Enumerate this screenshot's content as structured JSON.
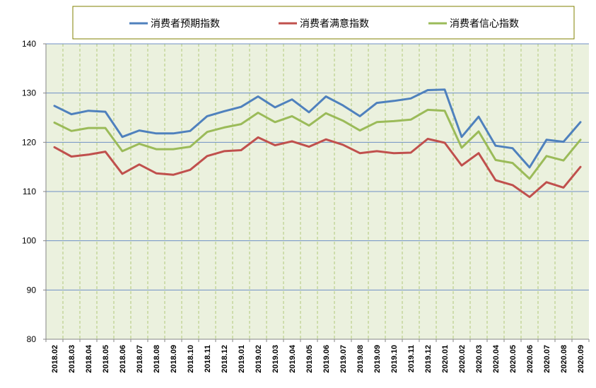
{
  "chart_data": {
    "type": "line",
    "categories": [
      "2018.02",
      "2018.03",
      "2018.04",
      "2018.05",
      "2018.06",
      "2018.07",
      "2018.08",
      "2018.09",
      "2018.10",
      "2018.11",
      "2018.12",
      "2019.01",
      "2019.02",
      "2019.03",
      "2019.04",
      "2019.05",
      "2019.06",
      "2019.07",
      "2019.08",
      "2019.09",
      "2019.10",
      "2019.11",
      "2019.12",
      "2020.01",
      "2020.02",
      "2020.03",
      "2020.04",
      "2020.05",
      "2020.06",
      "2020.07",
      "2020.08",
      "2020.09"
    ],
    "series": [
      {
        "name": "消费者预期指数",
        "color": "#4f81bd",
        "values": [
          127.4,
          125.7,
          126.4,
          126.2,
          121.1,
          122.4,
          121.8,
          121.8,
          122.3,
          125.3,
          126.3,
          127.2,
          129.3,
          127.1,
          128.7,
          126.1,
          129.3,
          127.5,
          125.3,
          128.0,
          128.4,
          128.9,
          130.6,
          130.7,
          121.1,
          125.2,
          119.3,
          118.8,
          114.9,
          120.5,
          120.1,
          124.1
        ]
      },
      {
        "name": "消费者满意指数",
        "color": "#c0504d",
        "values": [
          119.0,
          117.1,
          117.5,
          118.1,
          113.6,
          115.5,
          113.7,
          113.4,
          114.4,
          117.2,
          118.2,
          118.4,
          121.0,
          119.4,
          120.2,
          119.1,
          120.6,
          119.5,
          117.8,
          118.2,
          117.8,
          117.9,
          120.7,
          119.9,
          115.3,
          117.8,
          112.3,
          111.3,
          108.9,
          111.9,
          110.8,
          115.0
        ]
      },
      {
        "name": "消费者信心指数",
        "color": "#9bbb59",
        "values": [
          124.0,
          122.3,
          122.9,
          122.9,
          118.2,
          119.7,
          118.6,
          118.6,
          119.1,
          122.1,
          123.0,
          123.7,
          126.0,
          124.1,
          125.3,
          123.4,
          125.9,
          124.4,
          122.4,
          124.1,
          124.3,
          124.6,
          126.6,
          126.4,
          118.9,
          122.2,
          116.4,
          115.8,
          112.6,
          117.2,
          116.3,
          120.5
        ]
      }
    ],
    "yticks": [
      "80",
      "90",
      "100",
      "110",
      "120",
      "130",
      "140"
    ],
    "ylim": [
      80,
      140
    ],
    "grid": true,
    "legend_position": "top"
  },
  "colors": {
    "plot_bg": "#ebf1de",
    "legend_border": "#808000",
    "hgrid": "#6f8fc5",
    "vgrid": "#b2c97a"
  }
}
